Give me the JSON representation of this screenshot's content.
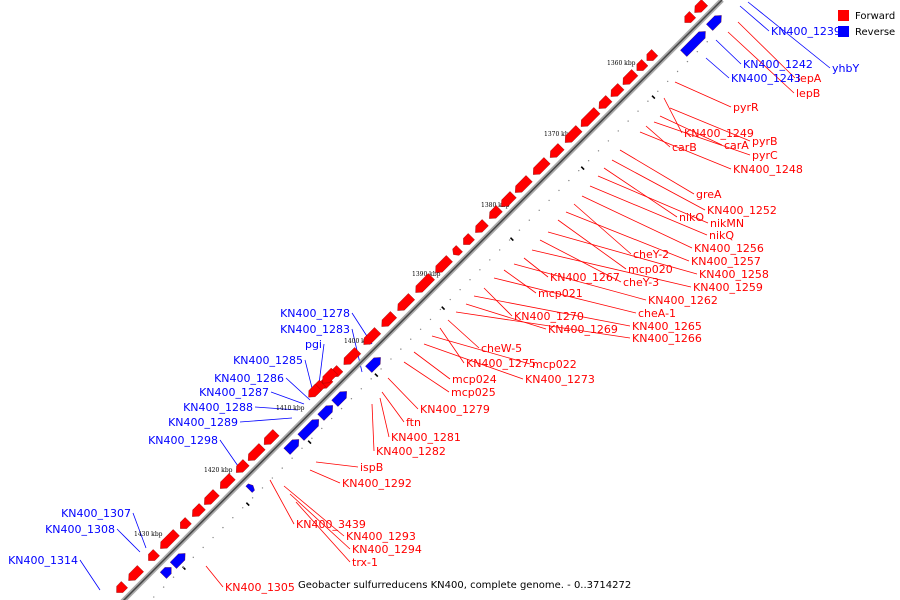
{
  "caption": "Geobacter sulfurreducens KN400, complete genome. - 0..3714272",
  "legend": [
    {
      "label": "Forward",
      "color": "#ff0000"
    },
    {
      "label": "Reverse",
      "color": "#0000ff"
    }
  ],
  "colors": {
    "forward": "#ff0000",
    "reverse": "#0000ff",
    "backbone": "#999999"
  },
  "ticks": [
    "1360 kbp",
    "1370 kbp",
    "1380 kbp",
    "1390 kbp",
    "1400 kbp",
    "1410 kbp",
    "1420 kbp",
    "1430 kbp"
  ],
  "forward_labels": [
    "lepA",
    "lepB",
    "pyrR",
    "KN400_1249",
    "pyrB",
    "carA",
    "pyrC",
    "carB",
    "KN400_1248",
    "greA",
    "KN400_1252",
    "nikO",
    "nikMN",
    "nikQ",
    "KN400_1256",
    "cheY-2",
    "KN400_1257",
    "mcp020",
    "KN400_1258",
    "cheY-3",
    "KN400_1259",
    "KN400_1267",
    "KN400_1262",
    "mcp021",
    "cheA-1",
    "KN400_1270",
    "KN400_1265",
    "KN400_1269",
    "KN400_1266",
    "cheW-5",
    "KN400_1275",
    "mcp022",
    "KN400_1273",
    "mcp024",
    "mcp025",
    "KN400_1279",
    "ftn",
    "KN400_1281",
    "KN400_1282",
    "ispB",
    "KN400_1292",
    "KN400_3439",
    "KN400_1293",
    "KN400_1294",
    "trx-1",
    "KN400_1305"
  ],
  "reverse_labels": [
    "KN400_1239",
    "yhbY",
    "KN400_1242",
    "KN400_1243",
    "KN400_1278",
    "KN400_1283",
    "pgi",
    "KN400_1285",
    "KN400_1286",
    "KN400_1287",
    "KN400_1288",
    "KN400_1289",
    "KN400_1298",
    "KN400_1307",
    "KN400_1308",
    "KN400_1314"
  ]
}
